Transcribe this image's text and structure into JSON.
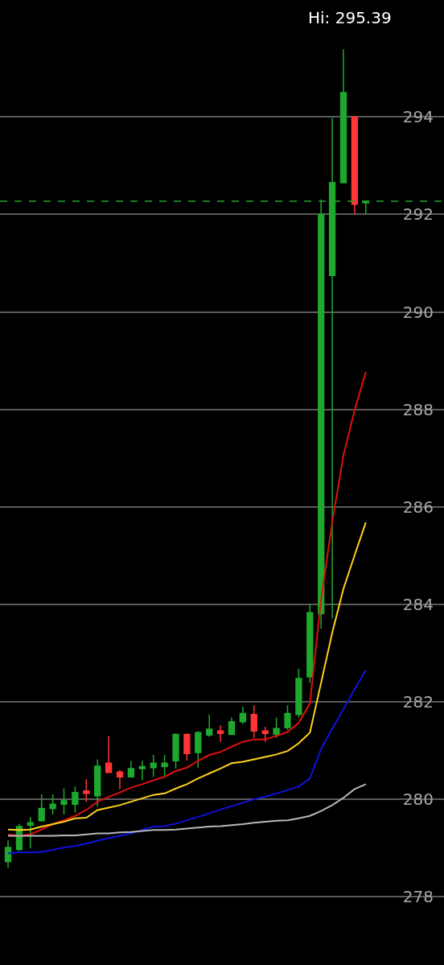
{
  "chart_data": {
    "type": "candlestick",
    "categories": [
      null,
      null,
      null,
      null,
      null,
      null,
      null,
      null,
      null,
      null,
      null,
      null,
      null,
      null,
      null,
      null,
      null,
      null,
      null,
      null,
      null,
      null,
      null,
      null,
      null,
      null,
      null,
      null,
      null,
      null,
      null,
      null,
      null
    ],
    "ohlc": [
      [
        278.72,
        279.16,
        278.6,
        279.01
      ],
      [
        278.97,
        279.5,
        278.94,
        279.44
      ],
      [
        279.47,
        279.64,
        278.99,
        279.52
      ],
      [
        279.56,
        280.1,
        279.54,
        279.81
      ],
      [
        279.81,
        280.1,
        279.69,
        279.9
      ],
      [
        279.9,
        280.22,
        279.69,
        279.97
      ],
      [
        279.9,
        280.26,
        279.73,
        280.14
      ],
      [
        280.17,
        280.41,
        279.95,
        280.12
      ],
      [
        280.07,
        280.82,
        279.85,
        280.68
      ],
      [
        280.74,
        281.3,
        280.55,
        280.55
      ],
      [
        280.56,
        280.6,
        280.21,
        280.46
      ],
      [
        280.46,
        280.79,
        280.46,
        280.63
      ],
      [
        280.63,
        280.79,
        280.39,
        280.67
      ],
      [
        280.65,
        280.91,
        280.46,
        280.74
      ],
      [
        280.67,
        280.91,
        280.46,
        280.74
      ],
      [
        280.79,
        281.35,
        280.63,
        281.33
      ],
      [
        281.33,
        281.35,
        280.8,
        280.94
      ],
      [
        280.96,
        281.4,
        280.65,
        281.37
      ],
      [
        281.32,
        281.74,
        281.28,
        281.44
      ],
      [
        281.4,
        281.52,
        281.18,
        281.35
      ],
      [
        281.33,
        281.68,
        281.32,
        281.59
      ],
      [
        281.59,
        281.9,
        281.54,
        281.76
      ],
      [
        281.74,
        281.93,
        281.26,
        281.4
      ],
      [
        281.4,
        281.49,
        281.18,
        281.35
      ],
      [
        281.33,
        281.68,
        281.26,
        281.45
      ],
      [
        281.47,
        281.93,
        281.42,
        281.76
      ],
      [
        281.74,
        282.68,
        281.68,
        282.48
      ],
      [
        282.51,
        284.0,
        282.39,
        283.83
      ],
      [
        283.81,
        292.31,
        283.5,
        292.0
      ],
      [
        290.75,
        293.98,
        283.71,
        292.65
      ],
      [
        292.65,
        295.39,
        292.65,
        294.5
      ],
      [
        294.0,
        294.0,
        292.02,
        292.21
      ],
      [
        292.24,
        292.27,
        292.02,
        292.27
      ]
    ],
    "series": [
      {
        "type": "line",
        "color": "#e01010",
        "values": [
          279.28,
          279.25,
          279.28,
          279.38,
          279.49,
          279.57,
          279.66,
          279.78,
          279.95,
          280.05,
          280.14,
          280.24,
          280.31,
          280.39,
          280.46,
          280.58,
          280.65,
          280.79,
          280.91,
          280.97,
          281.08,
          281.18,
          281.23,
          281.23,
          281.3,
          281.38,
          281.57,
          281.97,
          284.1,
          285.69,
          287.06,
          287.98,
          288.77
        ]
      },
      {
        "type": "line",
        "color": "#ffd21f",
        "values": [
          279.38,
          279.37,
          279.38,
          279.44,
          279.49,
          279.54,
          279.61,
          279.62,
          279.78,
          279.83,
          279.88,
          279.95,
          280.02,
          280.09,
          280.12,
          280.22,
          280.31,
          280.43,
          280.53,
          280.63,
          280.74,
          280.77,
          280.82,
          280.87,
          280.92,
          280.99,
          281.15,
          281.37,
          282.39,
          283.42,
          284.32,
          285.01,
          285.68
        ]
      },
      {
        "type": "line",
        "color": "#1010e0",
        "values": [
          278.89,
          278.91,
          278.91,
          278.92,
          278.96,
          279.01,
          279.04,
          279.09,
          279.15,
          279.2,
          279.25,
          279.3,
          279.37,
          279.44,
          279.45,
          279.5,
          279.57,
          279.64,
          279.71,
          279.79,
          279.86,
          279.93,
          280.0,
          280.05,
          280.12,
          280.19,
          280.26,
          280.43,
          281.03,
          281.45,
          281.85,
          282.26,
          282.65
        ]
      },
      {
        "type": "line",
        "color": "#b8b8b8",
        "values": [
          279.25,
          279.25,
          279.25,
          279.25,
          279.25,
          279.26,
          279.26,
          279.28,
          279.3,
          279.3,
          279.32,
          279.33,
          279.35,
          279.37,
          279.37,
          279.38,
          279.4,
          279.42,
          279.44,
          279.45,
          279.47,
          279.49,
          279.52,
          279.54,
          279.56,
          279.57,
          279.61,
          279.66,
          279.76,
          279.88,
          280.03,
          280.21,
          280.31
        ]
      }
    ],
    "ylim": [
      276.6,
      296.4
    ],
    "yticks": [
      278,
      280,
      282,
      284,
      286,
      288,
      290,
      292,
      294
    ],
    "grid": "y",
    "tick_labels": "y",
    "ref_lines": [
      {
        "axis": "y",
        "value": 292.27,
        "color": "#1fa82e",
        "line_style": "dashed"
      }
    ],
    "annotations": [
      "Hi: 295.39"
    ]
  }
}
